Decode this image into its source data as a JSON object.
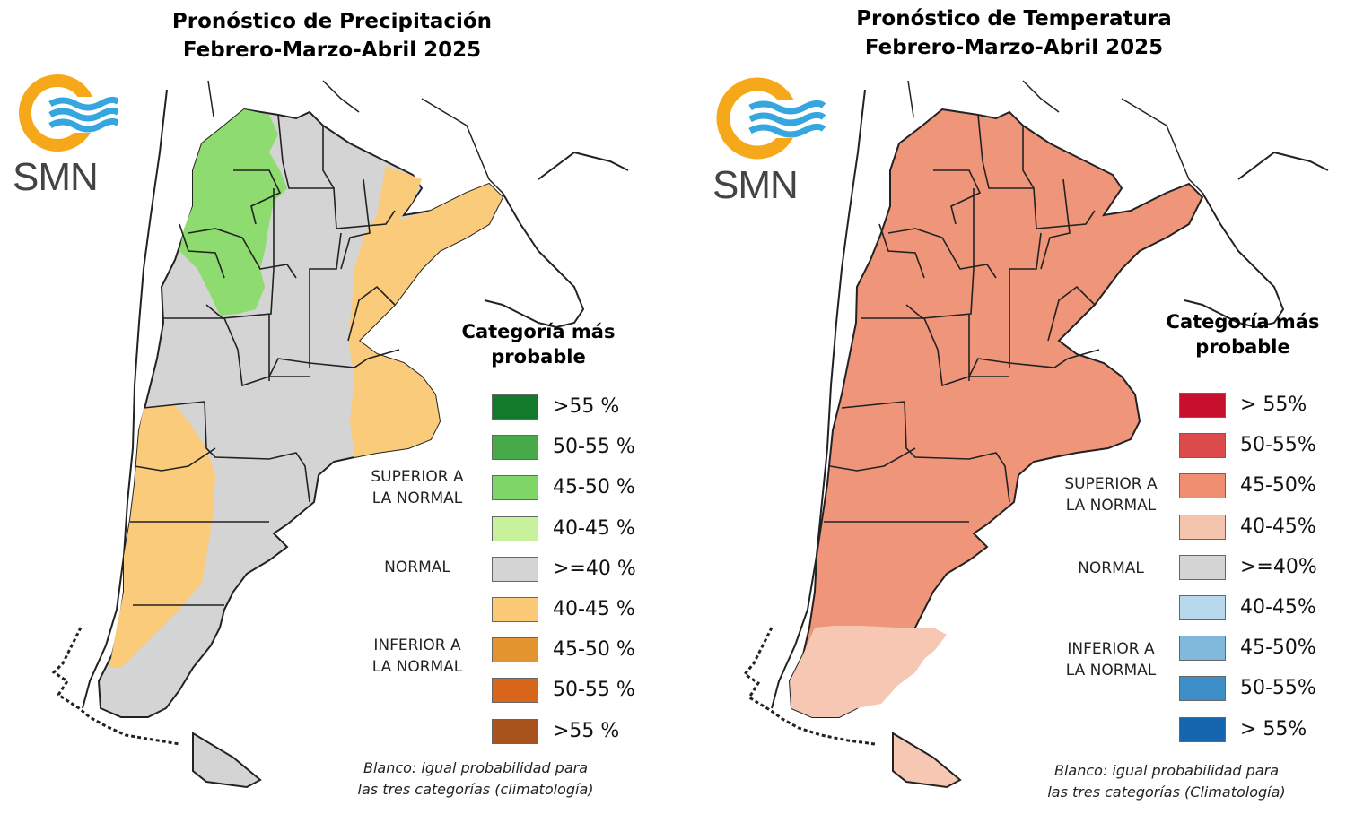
{
  "colors": {
    "normal_gray": "#d4d4d4",
    "precip_green": "#8edb70",
    "precip_orange": "#fbcb7c",
    "temp_main": "#ef957a",
    "temp_light": "#f6c7b2",
    "border": "#222222",
    "logo_orange": "#f6a81b",
    "logo_blue": "#35a6df"
  },
  "precip": {
    "title_line1": "Pronóstico de Precipitación",
    "title_line2": "Febrero-Marzo-Abril 2025",
    "logo_text": "SMN",
    "legend_title_line1": "Categoría más",
    "legend_title_line2": "probable",
    "legend": [
      {
        "color": "#137a2c",
        "label": ">55 %"
      },
      {
        "color": "#46aa48",
        "label": "50-55 %"
      },
      {
        "color": "#7fd565",
        "label": "45-50 %"
      },
      {
        "color": "#c8f19b",
        "label": "40-45 %"
      },
      {
        "color": "#d4d4d4",
        "label": ">=40 %"
      },
      {
        "color": "#fcc977",
        "label": "40-45 %"
      },
      {
        "color": "#e3942f",
        "label": "45-50 %"
      },
      {
        "color": "#d7661b",
        "label": "50-55 %"
      },
      {
        "color": "#a9531c",
        "label": ">55 %"
      }
    ],
    "superior_line1": "SUPERIOR A",
    "superior_line2": "LA NORMAL",
    "normal": "NORMAL",
    "inferior_line1": "INFERIOR A",
    "inferior_line2": "LA NORMAL",
    "note_line1": "Blanco: igual probabilidad para",
    "note_line2": "las tres categorías (climatología)"
  },
  "temp": {
    "title_line1": "Pronóstico de Temperatura",
    "title_line2": "Febrero-Marzo-Abril 2025",
    "logo_text": "SMN",
    "legend_title_line1": "Categoría más",
    "legend_title_line2": "probable",
    "legend": [
      {
        "color": "#c8102e",
        "label": "> 55%"
      },
      {
        "color": "#dc4b4b",
        "label": "50-55%"
      },
      {
        "color": "#ef8f6f",
        "label": "45-50%"
      },
      {
        "color": "#f6c4ae",
        "label": "40-45%"
      },
      {
        "color": "#d4d4d4",
        "label": ">=40%"
      },
      {
        "color": "#b8d9ec",
        "label": "40-45%"
      },
      {
        "color": "#7fb9dc",
        "label": "45-50%"
      },
      {
        "color": "#3e8fc9",
        "label": "50-55%"
      },
      {
        "color": "#1566ae",
        "label": "> 55%"
      }
    ],
    "superior_line1": "SUPERIOR A",
    "superior_line2": "LA NORMAL",
    "normal": "NORMAL",
    "inferior_line1": "INFERIOR A",
    "inferior_line2": "LA NORMAL",
    "note_line1": "Blanco: igual probabilidad para",
    "note_line2": "las tres categorías (Climatología)"
  }
}
